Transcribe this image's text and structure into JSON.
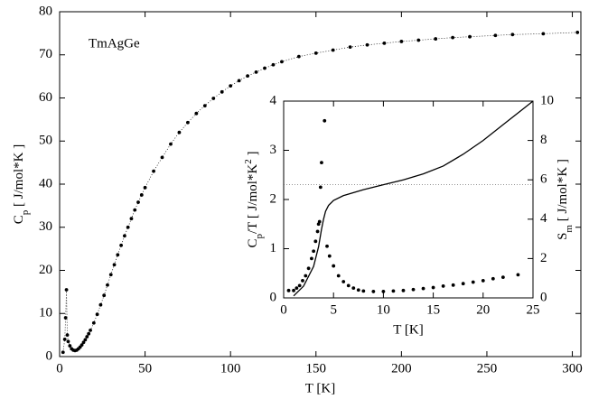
{
  "chart_data": [
    {
      "type": "scatter",
      "annotation": "TmAgGe",
      "xlabel": "T [K]",
      "ylabel": [
        {
          "text": "C"
        },
        {
          "text": "p",
          "script": "sub"
        },
        {
          "text": " [ J/mol*K ]"
        }
      ],
      "xlim": [
        0,
        305
      ],
      "ylim": [
        0,
        80
      ],
      "xticks": [
        0,
        50,
        100,
        150,
        200,
        250,
        300
      ],
      "yticks": [
        0,
        10,
        20,
        30,
        40,
        50,
        60,
        70,
        80
      ],
      "series": [
        {
          "color": "#000000",
          "connect": "dotted",
          "x": [
            2,
            3,
            3.5,
            4,
            4.5,
            5,
            6,
            7,
            8,
            9,
            10,
            11,
            12,
            13,
            14,
            15,
            16,
            17,
            18,
            20,
            22,
            24,
            26,
            28,
            30,
            32,
            34,
            36,
            38,
            40,
            42,
            44,
            46,
            48,
            50,
            55,
            60,
            65,
            70,
            75,
            80,
            85,
            90,
            95,
            100,
            105,
            110,
            115,
            120,
            125,
            130,
            140,
            150,
            160,
            170,
            180,
            190,
            200,
            210,
            220,
            230,
            240,
            255,
            265,
            283,
            303
          ],
          "values": [
            1,
            4,
            9,
            15.5,
            5,
            3.5,
            2.5,
            1.8,
            1.5,
            1.4,
            1.5,
            1.8,
            2.2,
            2.7,
            3.3,
            3.9,
            4.6,
            5.3,
            6.1,
            7.8,
            9.8,
            12,
            14.2,
            16.6,
            19,
            21.3,
            23.6,
            25.8,
            28,
            30,
            32,
            34,
            35.8,
            37.5,
            39.2,
            43,
            46.2,
            49.3,
            52,
            54.3,
            56.4,
            58.2,
            59.9,
            61.4,
            62.8,
            64,
            65.1,
            66,
            66.9,
            67.7,
            68.4,
            69.6,
            70.4,
            71.1,
            71.8,
            72.3,
            72.7,
            73.1,
            73.4,
            73.7,
            74,
            74.2,
            74.5,
            74.7,
            74.9,
            75.2
          ]
        }
      ]
    },
    {
      "type": "scatter",
      "xlabel": "T [K]",
      "ylabel": [
        {
          "text": "C"
        },
        {
          "text": "p",
          "script": "sub"
        },
        {
          "text": "/T [ J/mol*K"
        },
        {
          "text": "2",
          "script": "sup"
        },
        {
          "text": " ]"
        }
      ],
      "y2label": [
        {
          "text": "S"
        },
        {
          "text": "m",
          "script": "sub"
        },
        {
          "text": " [ J/mol*K ]"
        }
      ],
      "xlim": [
        0,
        25
      ],
      "ylim": [
        0,
        4
      ],
      "y2lim": [
        0,
        10
      ],
      "xticks": [
        0,
        5,
        10,
        15,
        20,
        25
      ],
      "yticks": [
        0,
        1,
        2,
        3,
        4
      ],
      "y2ticks": [
        0,
        2,
        4,
        6,
        8,
        10
      ],
      "hline_y2": 5.76,
      "series": [
        {
          "type": "scatter",
          "color": "#000000",
          "x": [
            0.5,
            1,
            1.3,
            1.6,
            1.9,
            2.2,
            2.5,
            2.8,
            3.0,
            3.2,
            3.4,
            3.5,
            3.6,
            3.7,
            3.8,
            4.1,
            4.35,
            4.6,
            5,
            5.5,
            6,
            6.5,
            7,
            7.5,
            8,
            9,
            10,
            11,
            12,
            13,
            14,
            15,
            16,
            17,
            18,
            19,
            20,
            21,
            22,
            23.5
          ],
          "values": [
            0.15,
            0.15,
            0.2,
            0.25,
            0.35,
            0.45,
            0.6,
            0.8,
            0.95,
            1.15,
            1.35,
            1.5,
            1.55,
            2.25,
            2.75,
            3.6,
            1.05,
            0.85,
            0.65,
            0.45,
            0.33,
            0.25,
            0.2,
            0.16,
            0.14,
            0.13,
            0.13,
            0.14,
            0.15,
            0.17,
            0.19,
            0.21,
            0.24,
            0.26,
            0.29,
            0.32,
            0.35,
            0.39,
            0.42,
            0.47
          ]
        },
        {
          "type": "line",
          "axis": "y2",
          "color": "#000000",
          "x": [
            1,
            2,
            3,
            3.5,
            3.8,
            4,
            4.2,
            4.5,
            5,
            6,
            8,
            10,
            12,
            14,
            16,
            18,
            20,
            22,
            24,
            25
          ],
          "values": [
            0.1,
            0.6,
            1.6,
            2.6,
            3.5,
            4.0,
            4.4,
            4.7,
            4.95,
            5.2,
            5.5,
            5.75,
            6.0,
            6.3,
            6.7,
            7.3,
            8.0,
            8.8,
            9.6,
            10
          ]
        }
      ]
    }
  ]
}
